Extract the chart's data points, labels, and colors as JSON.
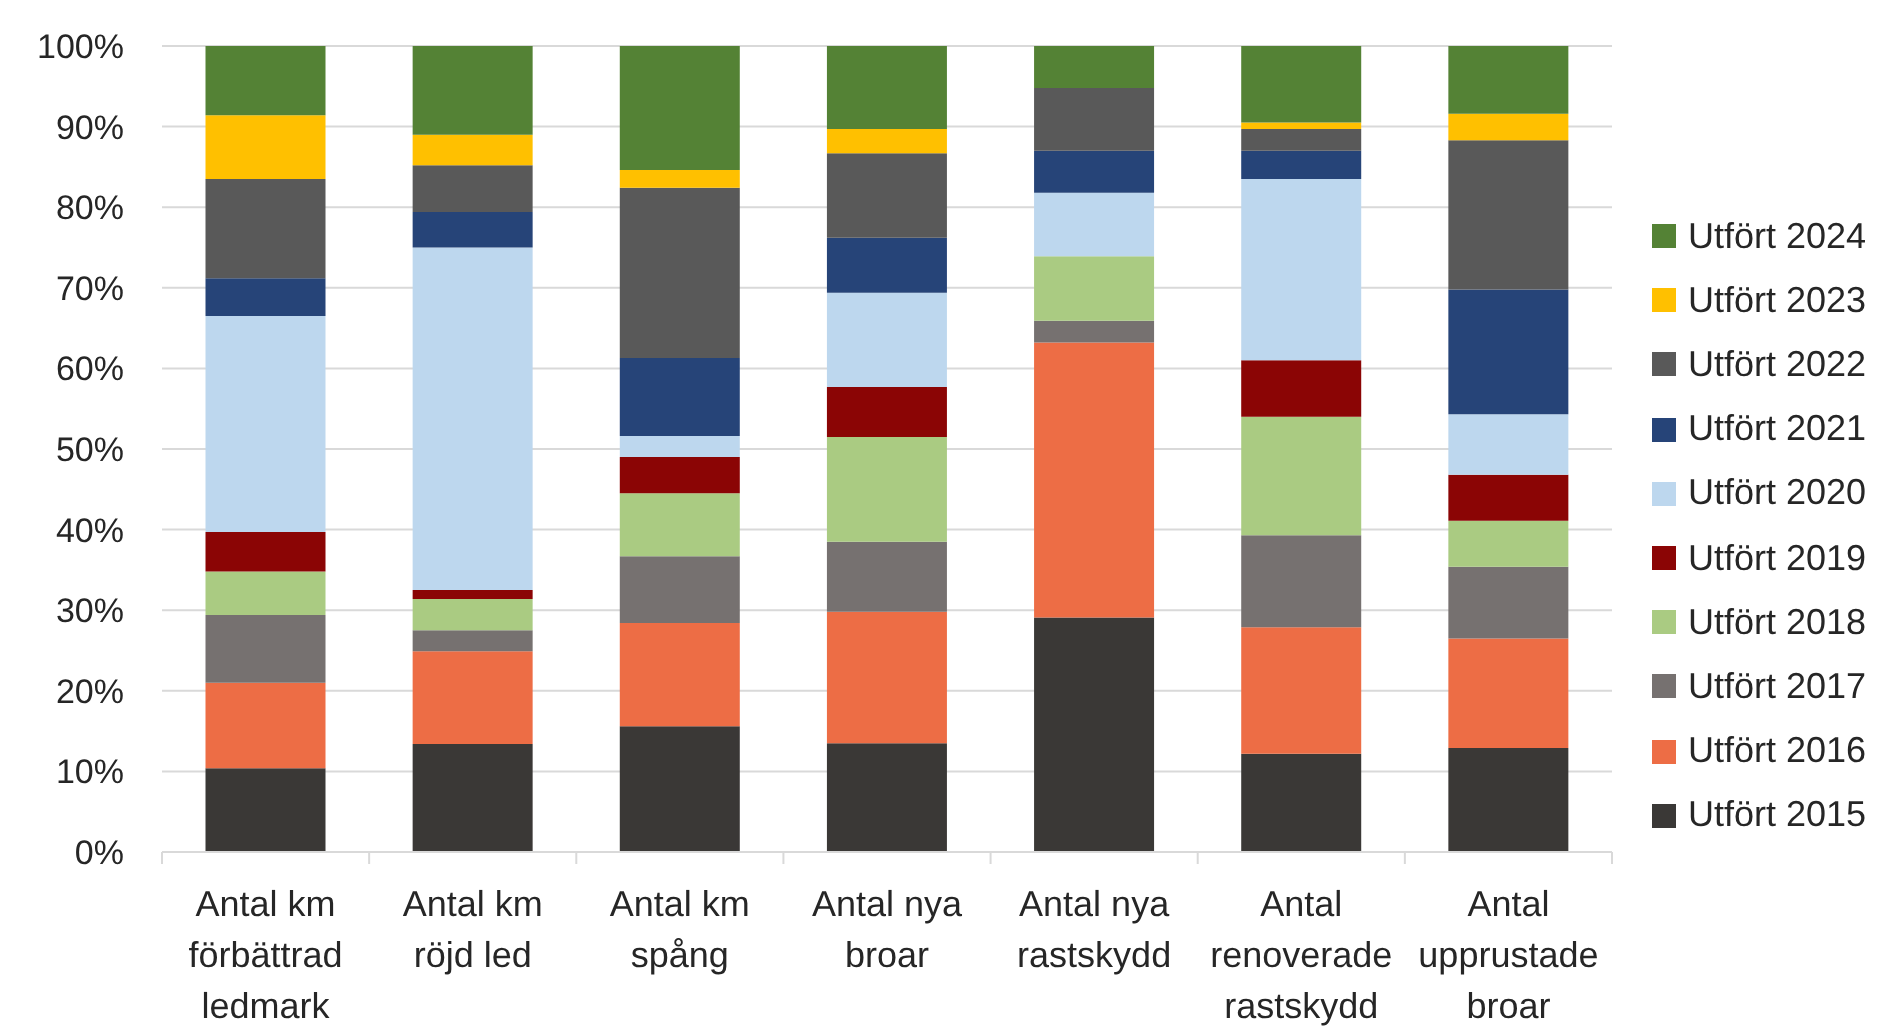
{
  "chart_data": {
    "type": "bar",
    "stacked": true,
    "categories": [
      "Antal km förbättrad ledmark",
      "Antal km röjd led",
      "Antal km spång",
      "Antal nya broar",
      "Antal nya rastskydd",
      "Antal renoverade rastskydd",
      "Antal upprustade broar"
    ],
    "series": [
      {
        "name": "Utfört 2015",
        "color": "#3a3836",
        "values": [
          10.4,
          13.4,
          15.6,
          13.5,
          29.1,
          12.2,
          12.9
        ]
      },
      {
        "name": "Utfört 2016",
        "color": "#ed6d45",
        "values": [
          10.6,
          11.5,
          12.8,
          16.3,
          34.1,
          15.7,
          13.6
        ]
      },
      {
        "name": "Utfört 2017",
        "color": "#767170",
        "values": [
          8.4,
          2.6,
          8.3,
          8.7,
          2.7,
          11.4,
          8.9
        ]
      },
      {
        "name": "Utfört 2018",
        "color": "#aacb82",
        "values": [
          5.4,
          3.9,
          7.8,
          13.0,
          8.0,
          14.7,
          5.7
        ]
      },
      {
        "name": "Utfört 2019",
        "color": "#8b0505",
        "values": [
          4.9,
          1.1,
          4.5,
          6.2,
          0,
          7.0,
          5.7
        ]
      },
      {
        "name": "Utfört 2020",
        "color": "#bdd7ee",
        "values": [
          26.8,
          42.5,
          2.6,
          11.7,
          7.9,
          22.5,
          7.5
        ]
      },
      {
        "name": "Utfört 2021",
        "color": "#264478",
        "values": [
          4.7,
          4.4,
          9.7,
          6.8,
          5.2,
          3.5,
          15.5
        ]
      },
      {
        "name": "Utfört 2022",
        "color": "#595959",
        "values": [
          12.3,
          5.8,
          21.1,
          10.5,
          7.8,
          2.7,
          18.5
        ]
      },
      {
        "name": "Utfört 2023",
        "color": "#ffc000",
        "values": [
          7.9,
          3.8,
          2.2,
          3.0,
          0,
          0.8,
          3.3
        ]
      },
      {
        "name": "Utfört 2024",
        "color": "#548235",
        "values": [
          8.6,
          11.0,
          15.4,
          10.3,
          5.2,
          9.5,
          8.4
        ]
      }
    ],
    "ylim": [
      0,
      100
    ],
    "yticks": [
      {
        "value": 0,
        "label": "0%"
      },
      {
        "value": 10,
        "label": "10%"
      },
      {
        "value": 20,
        "label": "20%"
      },
      {
        "value": 30,
        "label": "30%"
      },
      {
        "value": 40,
        "label": "40%"
      },
      {
        "value": 50,
        "label": "50%"
      },
      {
        "value": 60,
        "label": "60%"
      },
      {
        "value": 70,
        "label": "70%"
      },
      {
        "value": 80,
        "label": "80%"
      },
      {
        "value": 90,
        "label": "90%"
      },
      {
        "value": 100,
        "label": "100%"
      }
    ],
    "grid": "y",
    "legend": "right"
  }
}
